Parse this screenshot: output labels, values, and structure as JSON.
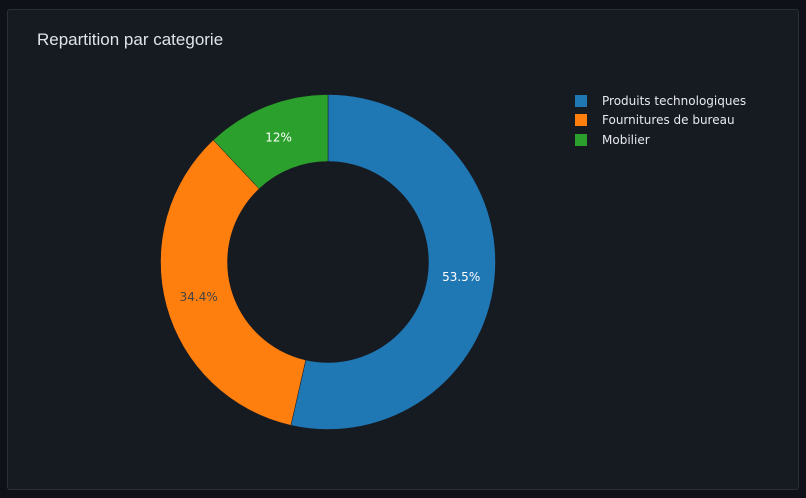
{
  "card": {
    "title": "Repartition par categorie"
  },
  "chart_data": {
    "type": "pie",
    "hole": 0.6,
    "title": "Repartition par categorie",
    "categories": [
      "Produits technologiques",
      "Fournitures de bureau",
      "Mobilier"
    ],
    "values": [
      53.5,
      34.4,
      12.0
    ],
    "labels": [
      "53.5%",
      "34.4%",
      "12%"
    ],
    "colors": [
      "#1f77b4",
      "#ff7f0e",
      "#2ca02c"
    ],
    "label_colors": [
      "#ffffff",
      "#444444",
      "#ffffff"
    ],
    "direction": "clockwise",
    "start_angle": "top",
    "legend": "top-right"
  }
}
